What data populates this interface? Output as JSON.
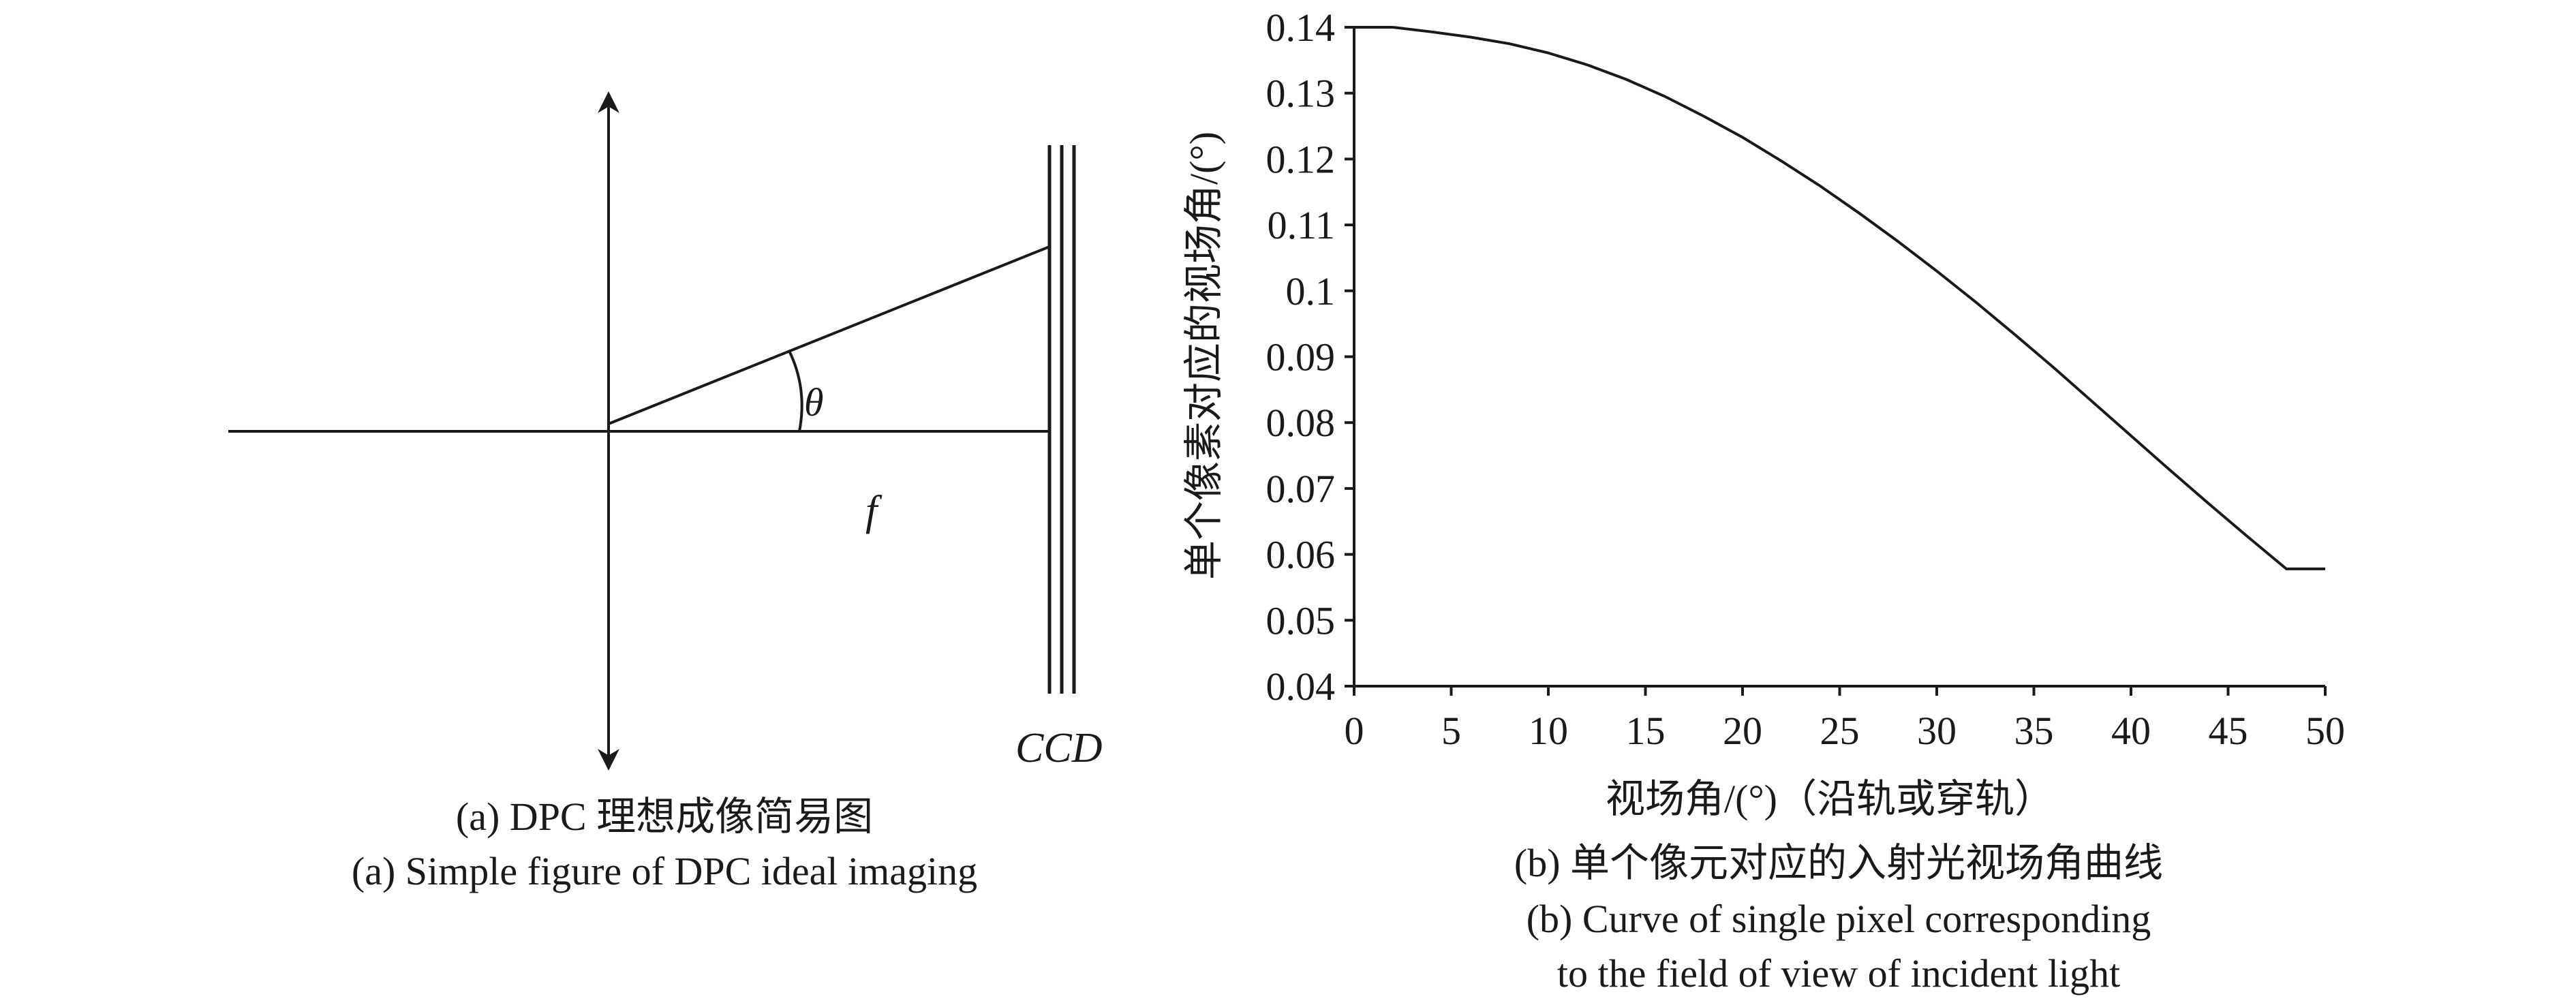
{
  "diagram": {
    "theta_label": "θ",
    "focal_label": "f",
    "sensor_label": "CCD",
    "caption_cn": "(a) DPC 理想成像简易图",
    "caption_en": "(a) Simple figure of DPC ideal imaging"
  },
  "chart_data": {
    "type": "line",
    "xlabel": "视场角/(°)（沿轨或穿轨）",
    "ylabel": "单个像素对应的视场角/(°)",
    "xlim": [
      0,
      50
    ],
    "ylim": [
      0.04,
      0.14
    ],
    "x_ticks": [
      0,
      5,
      10,
      15,
      20,
      25,
      30,
      35,
      40,
      45,
      50
    ],
    "y_ticks": [
      0.04,
      0.05,
      0.06,
      0.07,
      0.08,
      0.09,
      0.1,
      0.11,
      0.12,
      0.13,
      0.14
    ],
    "y_tick_labels": [
      "0.04",
      "0.05",
      "0.06",
      "0.07",
      "0.08",
      "0.09",
      "0.1",
      "0.11",
      "0.12",
      "0.13",
      "0.14"
    ],
    "grid": false,
    "series": [
      {
        "x": [
          0,
          2,
          4,
          6,
          8,
          10,
          12,
          14,
          16,
          18,
          20,
          22,
          24,
          26,
          28,
          30,
          32,
          34,
          36,
          38,
          40,
          42,
          44,
          46,
          48,
          50
        ],
        "values": [
          0.14,
          0.14,
          0.1393,
          0.1385,
          0.1375,
          0.1361,
          0.1343,
          0.1321,
          0.1295,
          0.1265,
          0.1233,
          0.1197,
          0.1159,
          0.1118,
          0.1075,
          0.103,
          0.0983,
          0.0934,
          0.0884,
          0.0832,
          0.078,
          0.0728,
          0.0677,
          0.0627,
          0.0578,
          0.0578
        ]
      }
    ],
    "caption_cn": "(b) 单个像元对应的入射光视场角曲线",
    "caption_en_line1": "(b) Curve of single pixel corresponding",
    "caption_en_line2": "to the field of view of incident light"
  }
}
